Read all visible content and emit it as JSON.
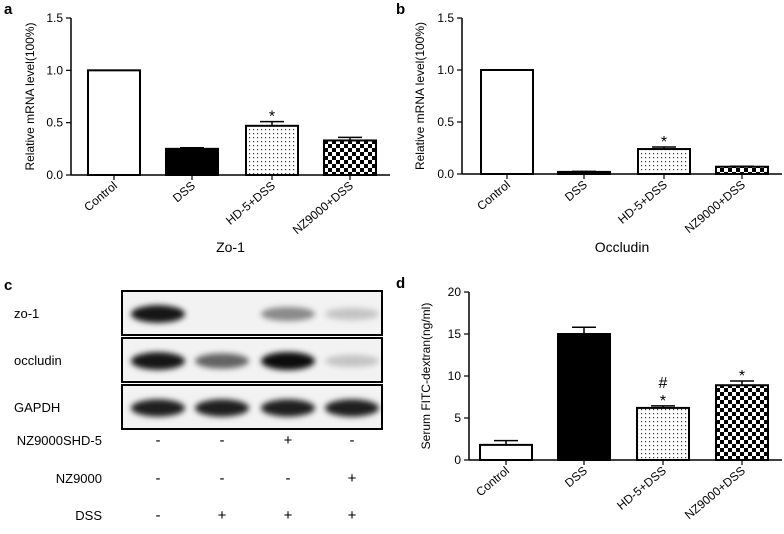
{
  "chart_data": [
    {
      "panel": "a",
      "type": "bar",
      "categories": [
        "Control",
        "DSS",
        "HD-5+DSS",
        "NZ9000+DSS"
      ],
      "values": [
        1.0,
        0.25,
        0.47,
        0.33
      ],
      "errors": [
        0,
        0.01,
        0.04,
        0.03
      ],
      "annotations": [
        "",
        "",
        "*",
        ""
      ],
      "fills": [
        "white",
        "black",
        "dots",
        "checker"
      ],
      "xlabel": "Zo-1",
      "ylabel": "Relative mRNA level(100%)",
      "ylim": [
        0,
        1.5
      ],
      "yticks": [
        "0.0",
        "0.5",
        "1.0",
        "1.5"
      ],
      "grid": false
    },
    {
      "panel": "b",
      "type": "bar",
      "categories": [
        "Control",
        "DSS",
        "HD-5+DSS",
        "NZ9000+DSS"
      ],
      "values": [
        1.0,
        0.02,
        0.24,
        0.07
      ],
      "errors": [
        0,
        0.005,
        0.02,
        0.005
      ],
      "annotations": [
        "",
        "",
        "*",
        ""
      ],
      "fills": [
        "white",
        "black",
        "dots",
        "checker"
      ],
      "xlabel": "Occludin",
      "ylabel": "Relative mRNA level(100%)",
      "ylim": [
        0,
        1.5
      ],
      "yticks": [
        "0.0",
        "0.5",
        "1.0",
        "1.5"
      ],
      "grid": false
    },
    {
      "panel": "d",
      "type": "bar",
      "categories": [
        "Control",
        "DSS",
        "HD-5+DSS",
        "NZ9000+DSS"
      ],
      "values": [
        1.8,
        15.0,
        6.2,
        8.9
      ],
      "errors": [
        0.5,
        0.8,
        0.25,
        0.5
      ],
      "annotations": [
        "",
        "",
        "#\n*",
        "*"
      ],
      "fills": [
        "white",
        "black",
        "dots",
        "checker"
      ],
      "xlabel": "",
      "ylabel": "Serum FITC-dextran(ng/ml)",
      "ylim": [
        0,
        20
      ],
      "yticks": [
        "0",
        "5",
        "10",
        "15",
        "20"
      ],
      "grid": false
    }
  ],
  "blot": {
    "panel": "c",
    "rows": [
      {
        "label": "zo-1",
        "intensities": [
          0.95,
          0.0,
          0.35,
          0.05
        ]
      },
      {
        "label": "occludin",
        "intensities": [
          0.95,
          0.55,
          1.0,
          0.05
        ]
      },
      {
        "label": "GAPDH",
        "intensities": [
          0.9,
          0.9,
          0.9,
          0.9
        ]
      }
    ],
    "conditions": [
      {
        "label": "NZ9000SHD-5",
        "signs": [
          "-",
          "-",
          "+",
          "-"
        ]
      },
      {
        "label": "NZ9000",
        "signs": [
          "-",
          "-",
          "-",
          "+"
        ]
      },
      {
        "label": "DSS",
        "signs": [
          "-",
          "+",
          "+",
          "+"
        ]
      }
    ]
  }
}
